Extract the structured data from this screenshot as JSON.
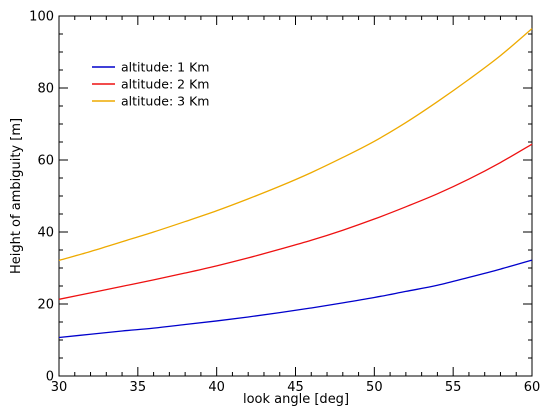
{
  "chart_data": {
    "type": "line",
    "title": "",
    "xlabel": "look angle [deg]",
    "ylabel": "Height of ambiguity [m]",
    "xlim": [
      30,
      60
    ],
    "ylim": [
      0,
      100
    ],
    "x_ticks": [
      30,
      35,
      40,
      45,
      50,
      55,
      60
    ],
    "y_ticks": [
      0,
      20,
      40,
      60,
      80,
      100
    ],
    "grid": false,
    "legend_position": "top-left",
    "series": [
      {
        "name": "altitude: 1 Km",
        "color": "#0000cc",
        "x": [
          30,
          32,
          34,
          36,
          38,
          40,
          42,
          44,
          46,
          48,
          50,
          52,
          54,
          56,
          58,
          60
        ],
        "y": [
          10.7,
          11.6,
          12.5,
          13.3,
          14.3,
          15.3,
          16.4,
          17.6,
          18.9,
          20.3,
          21.8,
          23.5,
          25.2,
          27.4,
          29.7,
          32.2
        ]
      },
      {
        "name": "altitude: 2 Km",
        "color": "#ee1111",
        "x": [
          30,
          32,
          34,
          36,
          38,
          40,
          42,
          44,
          46,
          48,
          50,
          52,
          54,
          56,
          58,
          60
        ],
        "y": [
          21.3,
          23.1,
          24.9,
          26.7,
          28.6,
          30.6,
          32.8,
          35.2,
          37.7,
          40.5,
          43.6,
          47.0,
          50.6,
          54.7,
          59.3,
          64.4
        ]
      },
      {
        "name": "altitude: 3 Km",
        "color": "#eeaa00",
        "x": [
          30,
          32,
          34,
          36,
          38,
          40,
          42,
          44,
          46,
          48,
          50,
          52,
          54,
          56,
          58,
          60
        ],
        "y": [
          32.1,
          34.6,
          37.3,
          40.0,
          42.9,
          45.9,
          49.2,
          52.7,
          56.5,
          60.7,
          65.2,
          70.4,
          76.2,
          82.4,
          89.0,
          96.5
        ]
      }
    ]
  }
}
